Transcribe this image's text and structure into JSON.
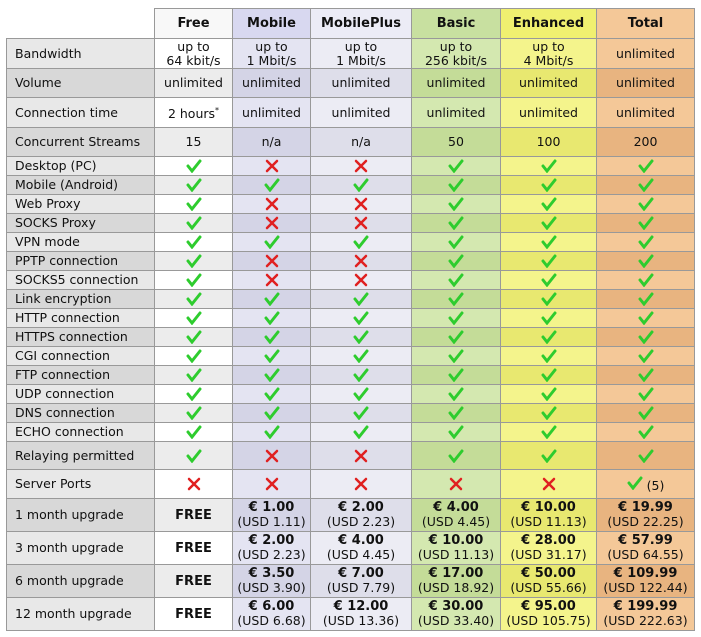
{
  "table": {
    "columns": [
      "Free",
      "Mobile",
      "MobilePlus",
      "Basic",
      "Enhanced",
      "Total"
    ],
    "rows": [
      {
        "label": "Bandwidth",
        "cells": [
          [
            "up to",
            "64 kbit/s"
          ],
          [
            "up to",
            "1 Mbit/s"
          ],
          [
            "up to",
            "1 Mbit/s"
          ],
          [
            "up to",
            "256 kbit/s"
          ],
          [
            "up to",
            "4 Mbit/s"
          ],
          "unlimited"
        ]
      },
      {
        "label": "Volume",
        "cells": [
          "unlimited",
          "unlimited",
          "unlimited",
          "unlimited",
          "unlimited",
          "unlimited"
        ]
      },
      {
        "label": "Connection time",
        "cells": [
          {
            "text": "2 hours",
            "sup": "*"
          },
          "unlimited",
          "unlimited",
          "unlimited",
          "unlimited",
          "unlimited"
        ]
      },
      {
        "label": "Concurrent Streams",
        "cells": [
          15,
          "n/a",
          "n/a",
          50,
          100,
          200
        ]
      },
      {
        "label": "Desktop (PC)",
        "cells": [
          true,
          false,
          false,
          true,
          true,
          true
        ]
      },
      {
        "label": "Mobile (Android)",
        "cells": [
          true,
          true,
          true,
          true,
          true,
          true
        ]
      },
      {
        "label": "Web Proxy",
        "cells": [
          true,
          false,
          false,
          true,
          true,
          true
        ]
      },
      {
        "label": "SOCKS Proxy",
        "cells": [
          true,
          false,
          false,
          true,
          true,
          true
        ]
      },
      {
        "label": "VPN mode",
        "cells": [
          true,
          true,
          true,
          true,
          true,
          true
        ]
      },
      {
        "label": "PPTP connection",
        "cells": [
          true,
          false,
          false,
          true,
          true,
          true
        ]
      },
      {
        "label": "SOCKS5 connection",
        "cells": [
          true,
          false,
          false,
          true,
          true,
          true
        ]
      },
      {
        "label": "Link encryption",
        "cells": [
          true,
          true,
          true,
          true,
          true,
          true
        ]
      },
      {
        "label": "HTTP connection",
        "cells": [
          true,
          true,
          true,
          true,
          true,
          true
        ]
      },
      {
        "label": "HTTPS connection",
        "cells": [
          true,
          true,
          true,
          true,
          true,
          true
        ]
      },
      {
        "label": "CGI connection",
        "cells": [
          true,
          true,
          true,
          true,
          true,
          true
        ]
      },
      {
        "label": "FTP connection",
        "cells": [
          true,
          true,
          true,
          true,
          true,
          true
        ]
      },
      {
        "label": "UDP connection",
        "cells": [
          true,
          true,
          true,
          true,
          true,
          true
        ]
      },
      {
        "label": "DNS connection",
        "cells": [
          true,
          true,
          true,
          true,
          true,
          true
        ]
      },
      {
        "label": "ECHO connection",
        "cells": [
          true,
          true,
          true,
          true,
          true,
          true
        ]
      },
      {
        "label": "Relaying permitted",
        "cells": [
          true,
          false,
          false,
          true,
          true,
          true
        ]
      },
      {
        "label": "Server Ports",
        "cells": [
          false,
          false,
          false,
          false,
          false,
          {
            "check": true,
            "note": "(5)"
          }
        ]
      },
      {
        "label": "1 month upgrade",
        "cells": [
          "FREE",
          {
            "price": "€ 1.00",
            "usd": "(USD 1.11)"
          },
          {
            "price": "€ 2.00",
            "usd": "(USD 2.23)"
          },
          {
            "price": "€ 4.00",
            "usd": "(USD 4.45)"
          },
          {
            "price": "€ 10.00",
            "usd": "(USD 11.13)"
          },
          {
            "price": "€ 19.99",
            "usd": "(USD 22.25)"
          }
        ]
      },
      {
        "label": "3 month upgrade",
        "cells": [
          "FREE",
          {
            "price": "€ 2.00",
            "usd": "(USD 2.23)"
          },
          {
            "price": "€ 4.00",
            "usd": "(USD 4.45)"
          },
          {
            "price": "€ 10.00",
            "usd": "(USD 11.13)"
          },
          {
            "price": "€ 28.00",
            "usd": "(USD 31.17)"
          },
          {
            "price": "€ 57.99",
            "usd": "(USD 64.55)"
          }
        ]
      },
      {
        "label": "6 month upgrade",
        "cells": [
          "FREE",
          {
            "price": "€ 3.50",
            "usd": "(USD 3.90)"
          },
          {
            "price": "€ 7.00",
            "usd": "(USD 7.79)"
          },
          {
            "price": "€ 17.00",
            "usd": "(USD 18.92)"
          },
          {
            "price": "€ 50.00",
            "usd": "(USD 55.66)"
          },
          {
            "price": "€ 109.99",
            "usd": "(USD 122.44)"
          }
        ]
      },
      {
        "label": "12 month upgrade",
        "cells": [
          "FREE",
          {
            "price": "€ 6.00",
            "usd": "(USD 6.68)"
          },
          {
            "price": "€ 12.00",
            "usd": "(USD 13.36)"
          },
          {
            "price": "€ 30.00",
            "usd": "(USD 33.40)"
          },
          {
            "price": "€ 95.00",
            "usd": "(USD 105.75)"
          },
          {
            "price": "€ 199.99",
            "usd": "(USD 222.63)"
          }
        ]
      }
    ]
  }
}
